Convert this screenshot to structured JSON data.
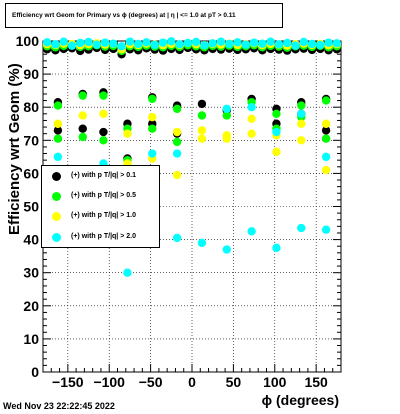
{
  "chart_data": {
    "type": "scatter",
    "title": "Efficiency wrt Geom for Primary vs ϕ (degrees) at | η | <= 1.0 at pT > 0.11",
    "xlabel": "ϕ (degrees)",
    "ylabel": "Efficiency wrt Geom (%)",
    "xlim": [
      -180,
      180
    ],
    "ylim": [
      0,
      100
    ],
    "x_ticks": [
      "−150",
      "−100",
      "−50",
      "0",
      "50",
      "100",
      "150"
    ],
    "x_tick_values": [
      -150,
      -100,
      -50,
      0,
      50,
      100,
      150
    ],
    "y_ticks": [
      "0",
      "10",
      "20",
      "30",
      "40",
      "50",
      "60",
      "70",
      "80",
      "90",
      "100"
    ],
    "y_tick_values": [
      0,
      10,
      20,
      30,
      40,
      50,
      60,
      70,
      80,
      90,
      100
    ],
    "grid": true,
    "legend_position": "middle-left",
    "series": [
      {
        "name": "(+) with p T/|q| > 0.1",
        "color": "#000000",
        "points": [
          {
            "x": -162,
            "y": 73
          },
          {
            "x": -162,
            "y": 81.5
          },
          {
            "x": -132,
            "y": 73.5
          },
          {
            "x": -132,
            "y": 84
          },
          {
            "x": -107,
            "y": 72.5
          },
          {
            "x": -107,
            "y": 84.5
          },
          {
            "x": -78,
            "y": 64.5
          },
          {
            "x": -78,
            "y": 75
          },
          {
            "x": -48,
            "y": 75
          },
          {
            "x": -48,
            "y": 83
          },
          {
            "x": -18,
            "y": 72
          },
          {
            "x": -18,
            "y": 80.5
          },
          {
            "x": 12,
            "y": 81
          },
          {
            "x": 42,
            "y": 79
          },
          {
            "x": 72,
            "y": 82.5
          },
          {
            "x": 102,
            "y": 75
          },
          {
            "x": 102,
            "y": 79.5
          },
          {
            "x": 132,
            "y": 78
          },
          {
            "x": 132,
            "y": 81.5
          },
          {
            "x": 162,
            "y": 73
          },
          {
            "x": 162,
            "y": 82.5
          }
        ],
        "top_band": [
          97.5,
          97.2,
          97.6,
          97.8,
          97.0,
          97.4,
          97.9,
          97.3,
          97.6,
          96.0,
          97.5,
          97.2,
          97.8,
          97.4,
          97.1,
          97.6,
          97.3,
          97.9,
          97.5,
          97.2,
          97.6,
          97.4,
          97.7,
          97.3,
          97.5,
          97.8,
          97.2,
          97.6,
          97.4,
          97.1,
          97.5,
          97.7,
          97.3,
          97.6,
          97.2,
          97.5
        ]
      },
      {
        "name": "(+) with p T/|q| > 0.5",
        "color": "#00ff00",
        "points": [
          {
            "x": -162,
            "y": 70.5
          },
          {
            "x": -162,
            "y": 80.5
          },
          {
            "x": -132,
            "y": 71
          },
          {
            "x": -132,
            "y": 83.5
          },
          {
            "x": -107,
            "y": 70
          },
          {
            "x": -107,
            "y": 83.5
          },
          {
            "x": -78,
            "y": 64
          },
          {
            "x": -78,
            "y": 73.5
          },
          {
            "x": -48,
            "y": 73.5
          },
          {
            "x": -48,
            "y": 82.5
          },
          {
            "x": -18,
            "y": 69.5
          },
          {
            "x": -18,
            "y": 79.5
          },
          {
            "x": 12,
            "y": 77.5
          },
          {
            "x": 42,
            "y": 77.5
          },
          {
            "x": 72,
            "y": 81.5
          },
          {
            "x": 102,
            "y": 73.5
          },
          {
            "x": 102,
            "y": 78
          },
          {
            "x": 132,
            "y": 77
          },
          {
            "x": 132,
            "y": 80.5
          },
          {
            "x": 162,
            "y": 70.5
          },
          {
            "x": 162,
            "y": 82
          }
        ],
        "top_band": [
          98.4,
          98.1,
          98.5,
          98.6,
          98.2,
          98.4,
          98.7,
          98.3,
          98.5,
          97.0,
          98.4,
          98.2,
          98.6,
          98.3,
          98.1,
          98.5,
          98.2,
          98.7,
          98.4,
          98.1,
          98.5,
          98.3,
          98.6,
          98.2,
          98.4,
          98.7,
          98.1,
          98.5,
          98.3,
          98.0,
          98.4,
          98.6,
          98.2,
          98.5,
          98.1,
          98.4
        ]
      },
      {
        "name": "(+) with p T/|q| > 1.0",
        "color": "#ffff00",
        "points": [
          {
            "x": -162,
            "y": 75
          },
          {
            "x": -132,
            "y": 77.5
          },
          {
            "x": -107,
            "y": 78
          },
          {
            "x": -78,
            "y": 63
          },
          {
            "x": -78,
            "y": 72
          },
          {
            "x": -48,
            "y": 64.5
          },
          {
            "x": -48,
            "y": 77
          },
          {
            "x": -18,
            "y": 59.5
          },
          {
            "x": -18,
            "y": 72.5
          },
          {
            "x": 12,
            "y": 70.5
          },
          {
            "x": 12,
            "y": 73
          },
          {
            "x": 42,
            "y": 70.5
          },
          {
            "x": 42,
            "y": 71.5
          },
          {
            "x": 72,
            "y": 72
          },
          {
            "x": 72,
            "y": 76.5
          },
          {
            "x": 102,
            "y": 66.5
          },
          {
            "x": 102,
            "y": 71.5
          },
          {
            "x": 132,
            "y": 70
          },
          {
            "x": 132,
            "y": 75
          },
          {
            "x": 162,
            "y": 61
          },
          {
            "x": 162,
            "y": 75
          }
        ],
        "top_band": [
          99.0,
          98.8,
          99.2,
          99.1,
          98.7,
          99.0,
          99.3,
          98.9,
          99.1,
          97.5,
          99.0,
          98.8,
          99.2,
          98.9,
          98.7,
          99.1,
          98.8,
          99.3,
          99.0,
          98.7,
          99.1,
          98.9,
          99.2,
          98.8,
          99.0,
          99.3,
          98.7,
          99.1,
          98.9,
          98.6,
          99.0,
          99.2,
          98.8,
          99.1,
          98.7,
          99.0
        ]
      },
      {
        "name": "(+) with p T/|q| > 2.0",
        "color": "#00ffff",
        "points": [
          {
            "x": -162,
            "y": 65
          },
          {
            "x": -132,
            "y": 57
          },
          {
            "x": -107,
            "y": 63
          },
          {
            "x": -78,
            "y": 30
          },
          {
            "x": -48,
            "y": 66
          },
          {
            "x": -48,
            "y": 61
          },
          {
            "x": -18,
            "y": 66
          },
          {
            "x": -18,
            "y": 40.5
          },
          {
            "x": 12,
            "y": 39
          },
          {
            "x": 42,
            "y": 37
          },
          {
            "x": 42,
            "y": 79.5
          },
          {
            "x": 72,
            "y": 42.5
          },
          {
            "x": 72,
            "y": 80
          },
          {
            "x": 102,
            "y": 37.5
          },
          {
            "x": 102,
            "y": 72.5
          },
          {
            "x": 132,
            "y": 43.5
          },
          {
            "x": 132,
            "y": 78
          },
          {
            "x": 162,
            "y": 43
          },
          {
            "x": 162,
            "y": 65
          }
        ],
        "top_band": [
          99.6,
          99.0,
          99.8,
          98.6,
          99.4,
          99.7,
          98.9,
          99.5,
          99.2,
          98.4,
          99.8,
          99.1,
          99.6,
          98.8,
          99.5,
          99.9,
          99.0,
          99.4,
          99.7,
          98.7,
          99.3,
          99.8,
          99.1,
          99.6,
          98.9,
          99.5,
          99.2,
          99.8,
          99.0,
          99.4,
          98.6,
          99.7,
          99.1,
          98.8,
          99.5,
          99.3
        ]
      }
    ]
  },
  "footer": {
    "timestamp": "Wed Nov 23 22:22:45 2022"
  }
}
